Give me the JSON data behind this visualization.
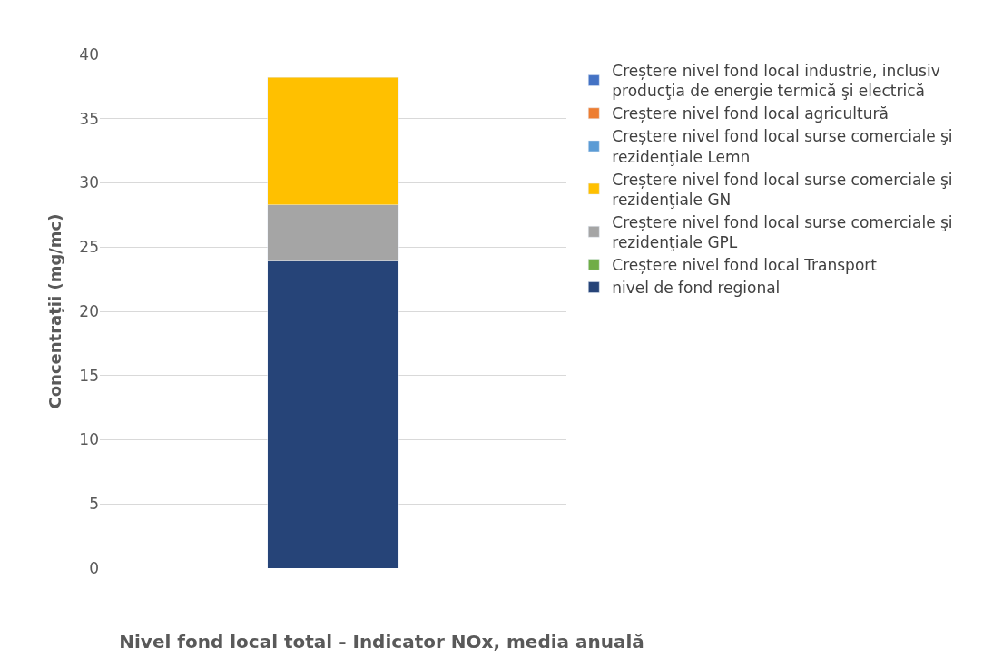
{
  "chart_data": {
    "type": "bar",
    "stacked": true,
    "title": "Nivel fond local total - Indicator NOx, media anuală",
    "ylabel": "Concentrații (mg/mc)",
    "categories": [
      null
    ],
    "series": [
      {
        "name": "nivel de fond regional",
        "color": "#264478",
        "values": [
          23.9
        ]
      },
      {
        "name": "Creștere nivel fond local Transport",
        "color": "#70ad47",
        "values": [
          null
        ]
      },
      {
        "name": "Creștere nivel fond local surse comerciale şi rezidenţiale GPL",
        "color": "#a5a5a5",
        "values": [
          4.4
        ]
      },
      {
        "name": "Creștere nivel fond local surse comerciale şi rezidenţiale GN",
        "color": "#ffc000",
        "values": [
          9.9
        ]
      },
      {
        "name": "Creștere nivel fond local surse comerciale şi rezidenţiale Lemn",
        "color": "#5b9bd5",
        "values": [
          null
        ]
      },
      {
        "name": "Creștere nivel fond local agricultură",
        "color": "#ed7d31",
        "values": [
          null
        ]
      },
      {
        "name": "Creștere nivel fond local industrie, inclusiv producţia de energie termică şi electrică",
        "color": "#4472c4",
        "values": [
          null
        ]
      }
    ],
    "ylim": [
      0,
      40
    ],
    "yticks": [
      0,
      5,
      10,
      15,
      20,
      25,
      30,
      35,
      40
    ],
    "grid": "y",
    "legend": "right"
  }
}
